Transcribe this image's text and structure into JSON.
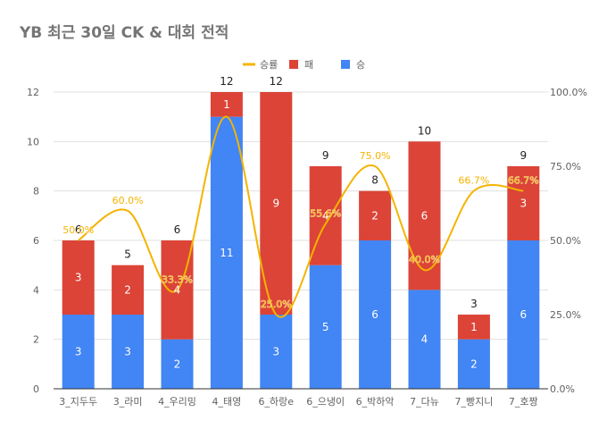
{
  "chart_data": {
    "type": "bar",
    "title": "YB 최근 30일 CK & 대회 전적",
    "categories": [
      "3_지두두",
      "3_라미",
      "4_우리밍",
      "4_태영",
      "6_하랑e",
      "6_으냉이",
      "6_박하악",
      "7_다뉴",
      "7_빵지니",
      "7_호짱"
    ],
    "series": [
      {
        "name": "승",
        "stack": true,
        "color": "#4285f4",
        "values": [
          3,
          3,
          2,
          11,
          3,
          5,
          6,
          4,
          2,
          6
        ]
      },
      {
        "name": "패",
        "stack": true,
        "color": "#db4437",
        "values": [
          3,
          2,
          4,
          1,
          9,
          4,
          2,
          6,
          1,
          3
        ]
      },
      {
        "name": "승률",
        "type": "line",
        "axis": "right",
        "color": "#f4b400",
        "values": [
          50.0,
          60.0,
          33.3,
          91.7,
          25.0,
          55.6,
          75.0,
          40.0,
          66.7,
          66.7
        ],
        "labels": [
          "50.0%",
          "60.0%",
          "33.3%",
          "",
          "25.0%",
          "55.6%",
          "75.0%",
          "40.0%",
          "66.7%",
          "66.7%"
        ]
      }
    ],
    "totals": [
      6,
      5,
      6,
      12,
      12,
      9,
      8,
      10,
      3,
      9
    ],
    "y_left": {
      "min": 0,
      "max": 12,
      "ticks": [
        "0",
        "2",
        "4",
        "6",
        "8",
        "10",
        "12"
      ]
    },
    "y_right": {
      "min": 0,
      "max": 100,
      "ticks": [
        "0.0%",
        "25.0%",
        "50.0%",
        "75.0%",
        "100.0%"
      ]
    },
    "legend": {
      "position": "top",
      "items": [
        "승률",
        "패",
        "승"
      ]
    },
    "grid": true
  }
}
